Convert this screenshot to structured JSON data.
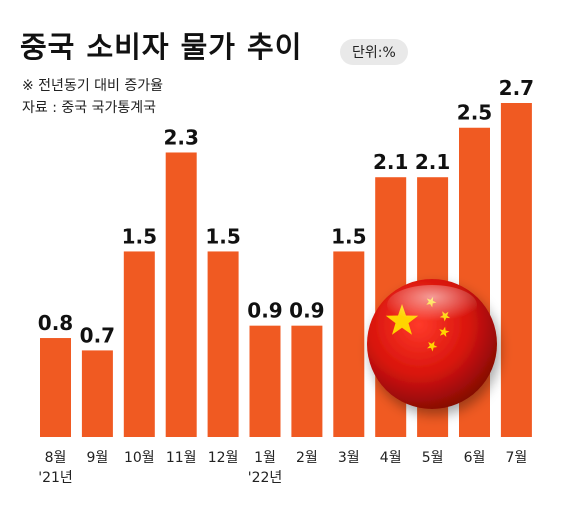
{
  "header": {
    "title": "중국 소비자 물가 추이",
    "unit": "단위:%",
    "note": "※ 전년동기 대비 증가율",
    "source": "자료 : 중국 국가통계국"
  },
  "colors": {
    "bar": "#f05a22",
    "flag_red": "#d8140c",
    "star": "#ffd400"
  },
  "flag_icon": "china-flag-sphere-icon",
  "chart_data": {
    "type": "bar",
    "categories": [
      "8월",
      "9월",
      "10월",
      "11월",
      "12월",
      "1월",
      "2월",
      "3월",
      "4월",
      "5월",
      "6월",
      "7월"
    ],
    "year_labels": [
      "'21년",
      "",
      "",
      "",
      "",
      "'22년",
      "",
      "",
      "",
      "",
      "",
      ""
    ],
    "values": [
      0.8,
      0.7,
      1.5,
      2.3,
      1.5,
      0.9,
      0.9,
      1.5,
      2.1,
      2.1,
      2.5,
      2.7
    ],
    "value_labels": [
      "0.8",
      "0.7",
      "1.5",
      "2.3",
      "1.5",
      "0.9",
      "0.9",
      "1.5",
      "2.1",
      "2.1",
      "2.5",
      "2.7"
    ],
    "ylim": [
      0,
      2.7
    ],
    "grid": false,
    "legend": "none"
  }
}
